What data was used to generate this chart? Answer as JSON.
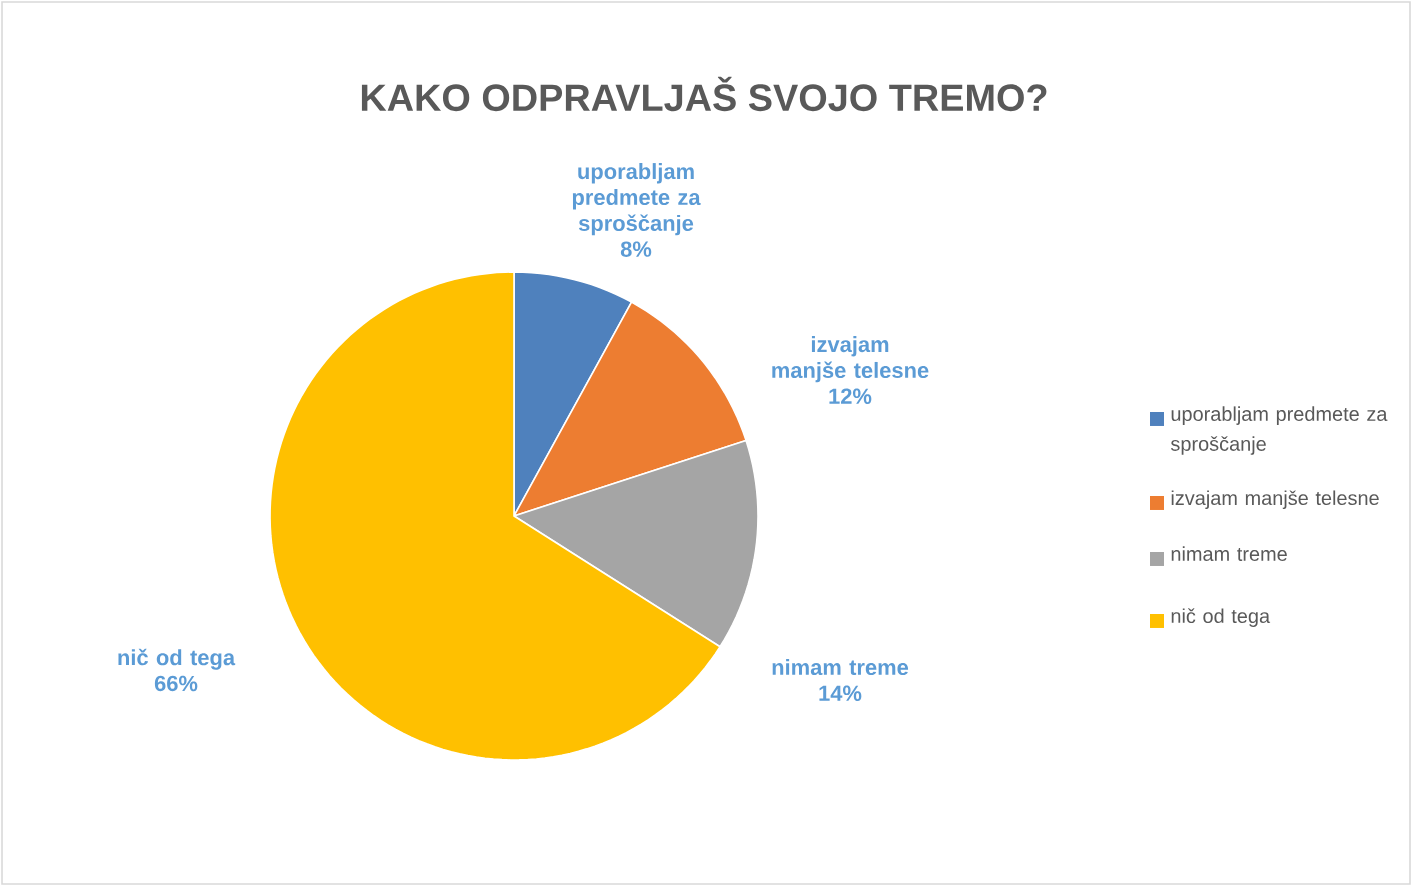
{
  "chart_data": {
    "type": "pie",
    "title": "KAKO ODPRAVLJAŠ SVOJO TREMO?",
    "categories": [
      "uporabljam predmete za sproščanje",
      "izvajam manjše telesne",
      "nimam treme",
      "nič od tega"
    ],
    "values": [
      8,
      12,
      14,
      66
    ],
    "value_labels": [
      "8%",
      "12%",
      "14%",
      "66%"
    ],
    "colors": [
      "#4f81bd",
      "#ed7d31",
      "#a5a5a5",
      "#ffc000"
    ],
    "legend": "right"
  }
}
